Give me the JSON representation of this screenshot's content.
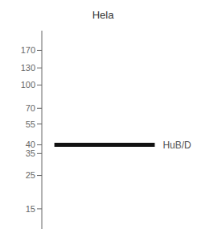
{
  "chart_data": {
    "type": "gel",
    "title": "Hela",
    "log": "y",
    "ylim": [
      11,
      230
    ],
    "yticks": [
      170,
      130,
      100,
      70,
      55,
      40,
      35,
      25,
      15
    ],
    "values": [
      40
    ],
    "color": "#111111",
    "annotations": [
      {
        "text": "HuB/D",
        "y": 40
      }
    ],
    "grid": false
  }
}
